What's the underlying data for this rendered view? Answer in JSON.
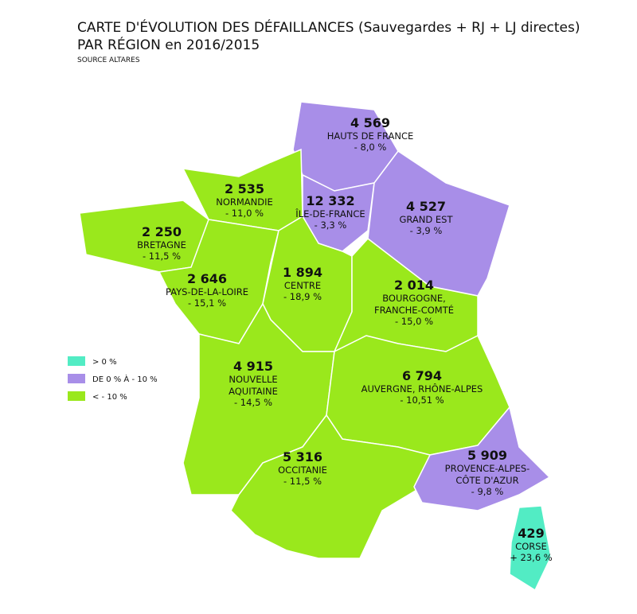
{
  "header": {
    "title_lines": [
      "CARTE D'ÉVOLUTION DES DÉFAILLANCES (Sauvegardes + RJ + LJ directes)",
      "PAR RÉGION en 2016/2015"
    ],
    "source": "SOURCE ALTARES"
  },
  "legend": [
    {
      "label": "> 0 %",
      "color": "#52ecc4"
    },
    {
      "label": "DE 0 % À - 10 %",
      "color": "#a88ee8"
    },
    {
      "label": "< - 10 %",
      "color": "#9ae81c"
    }
  ],
  "regions": [
    {
      "count": "4 569",
      "name": [
        "HAUTS DE FRANCE"
      ],
      "change": "- 8,0 %",
      "color": "#a88ee8"
    },
    {
      "count": "12 332",
      "name": [
        "ÎLE-DE-FRANCE"
      ],
      "change": "- 3,3 %",
      "color": "#a88ee8"
    },
    {
      "count": "4 527",
      "name": [
        "GRAND EST"
      ],
      "change": "- 3,9 %",
      "color": "#a88ee8"
    },
    {
      "count": "2 535",
      "name": [
        "NORMANDIE"
      ],
      "change": "- 11,0 %",
      "color": "#9ae81c"
    },
    {
      "count": "2 250",
      "name": [
        "BRETAGNE"
      ],
      "change": "- 11,5 %",
      "color": "#9ae81c"
    },
    {
      "count": "2 646",
      "name": [
        "PAYS-DE-LA-LOIRE"
      ],
      "change": "- 15,1 %",
      "color": "#9ae81c"
    },
    {
      "count": "1 894",
      "name": [
        "CENTRE"
      ],
      "change": "- 18,9 %",
      "color": "#9ae81c"
    },
    {
      "count": "2 014",
      "name": [
        "BOURGOGNE,",
        "FRANCHE-COMTÉ"
      ],
      "change": "- 15,0 %",
      "color": "#9ae81c"
    },
    {
      "count": "4 915",
      "name": [
        "NOUVELLE",
        "AQUITAINE"
      ],
      "change": "- 14,5 %",
      "color": "#9ae81c"
    },
    {
      "count": "6 794",
      "name": [
        "AUVERGNE, RHÔNE-ALPES"
      ],
      "change": "- 10,51 %",
      "color": "#9ae81c"
    },
    {
      "count": "5 316",
      "name": [
        "OCCITANIE"
      ],
      "change": "- 11,5 %",
      "color": "#9ae81c"
    },
    {
      "count": "5 909",
      "name": [
        "PROVENCE-ALPES-",
        "CÔTE D'AZUR"
      ],
      "change": "- 9,8 %",
      "color": "#a88ee8"
    },
    {
      "count": "429",
      "name": [
        "CORSE"
      ],
      "change": "+ 23,6 %",
      "color": "#52ecc4"
    }
  ]
}
